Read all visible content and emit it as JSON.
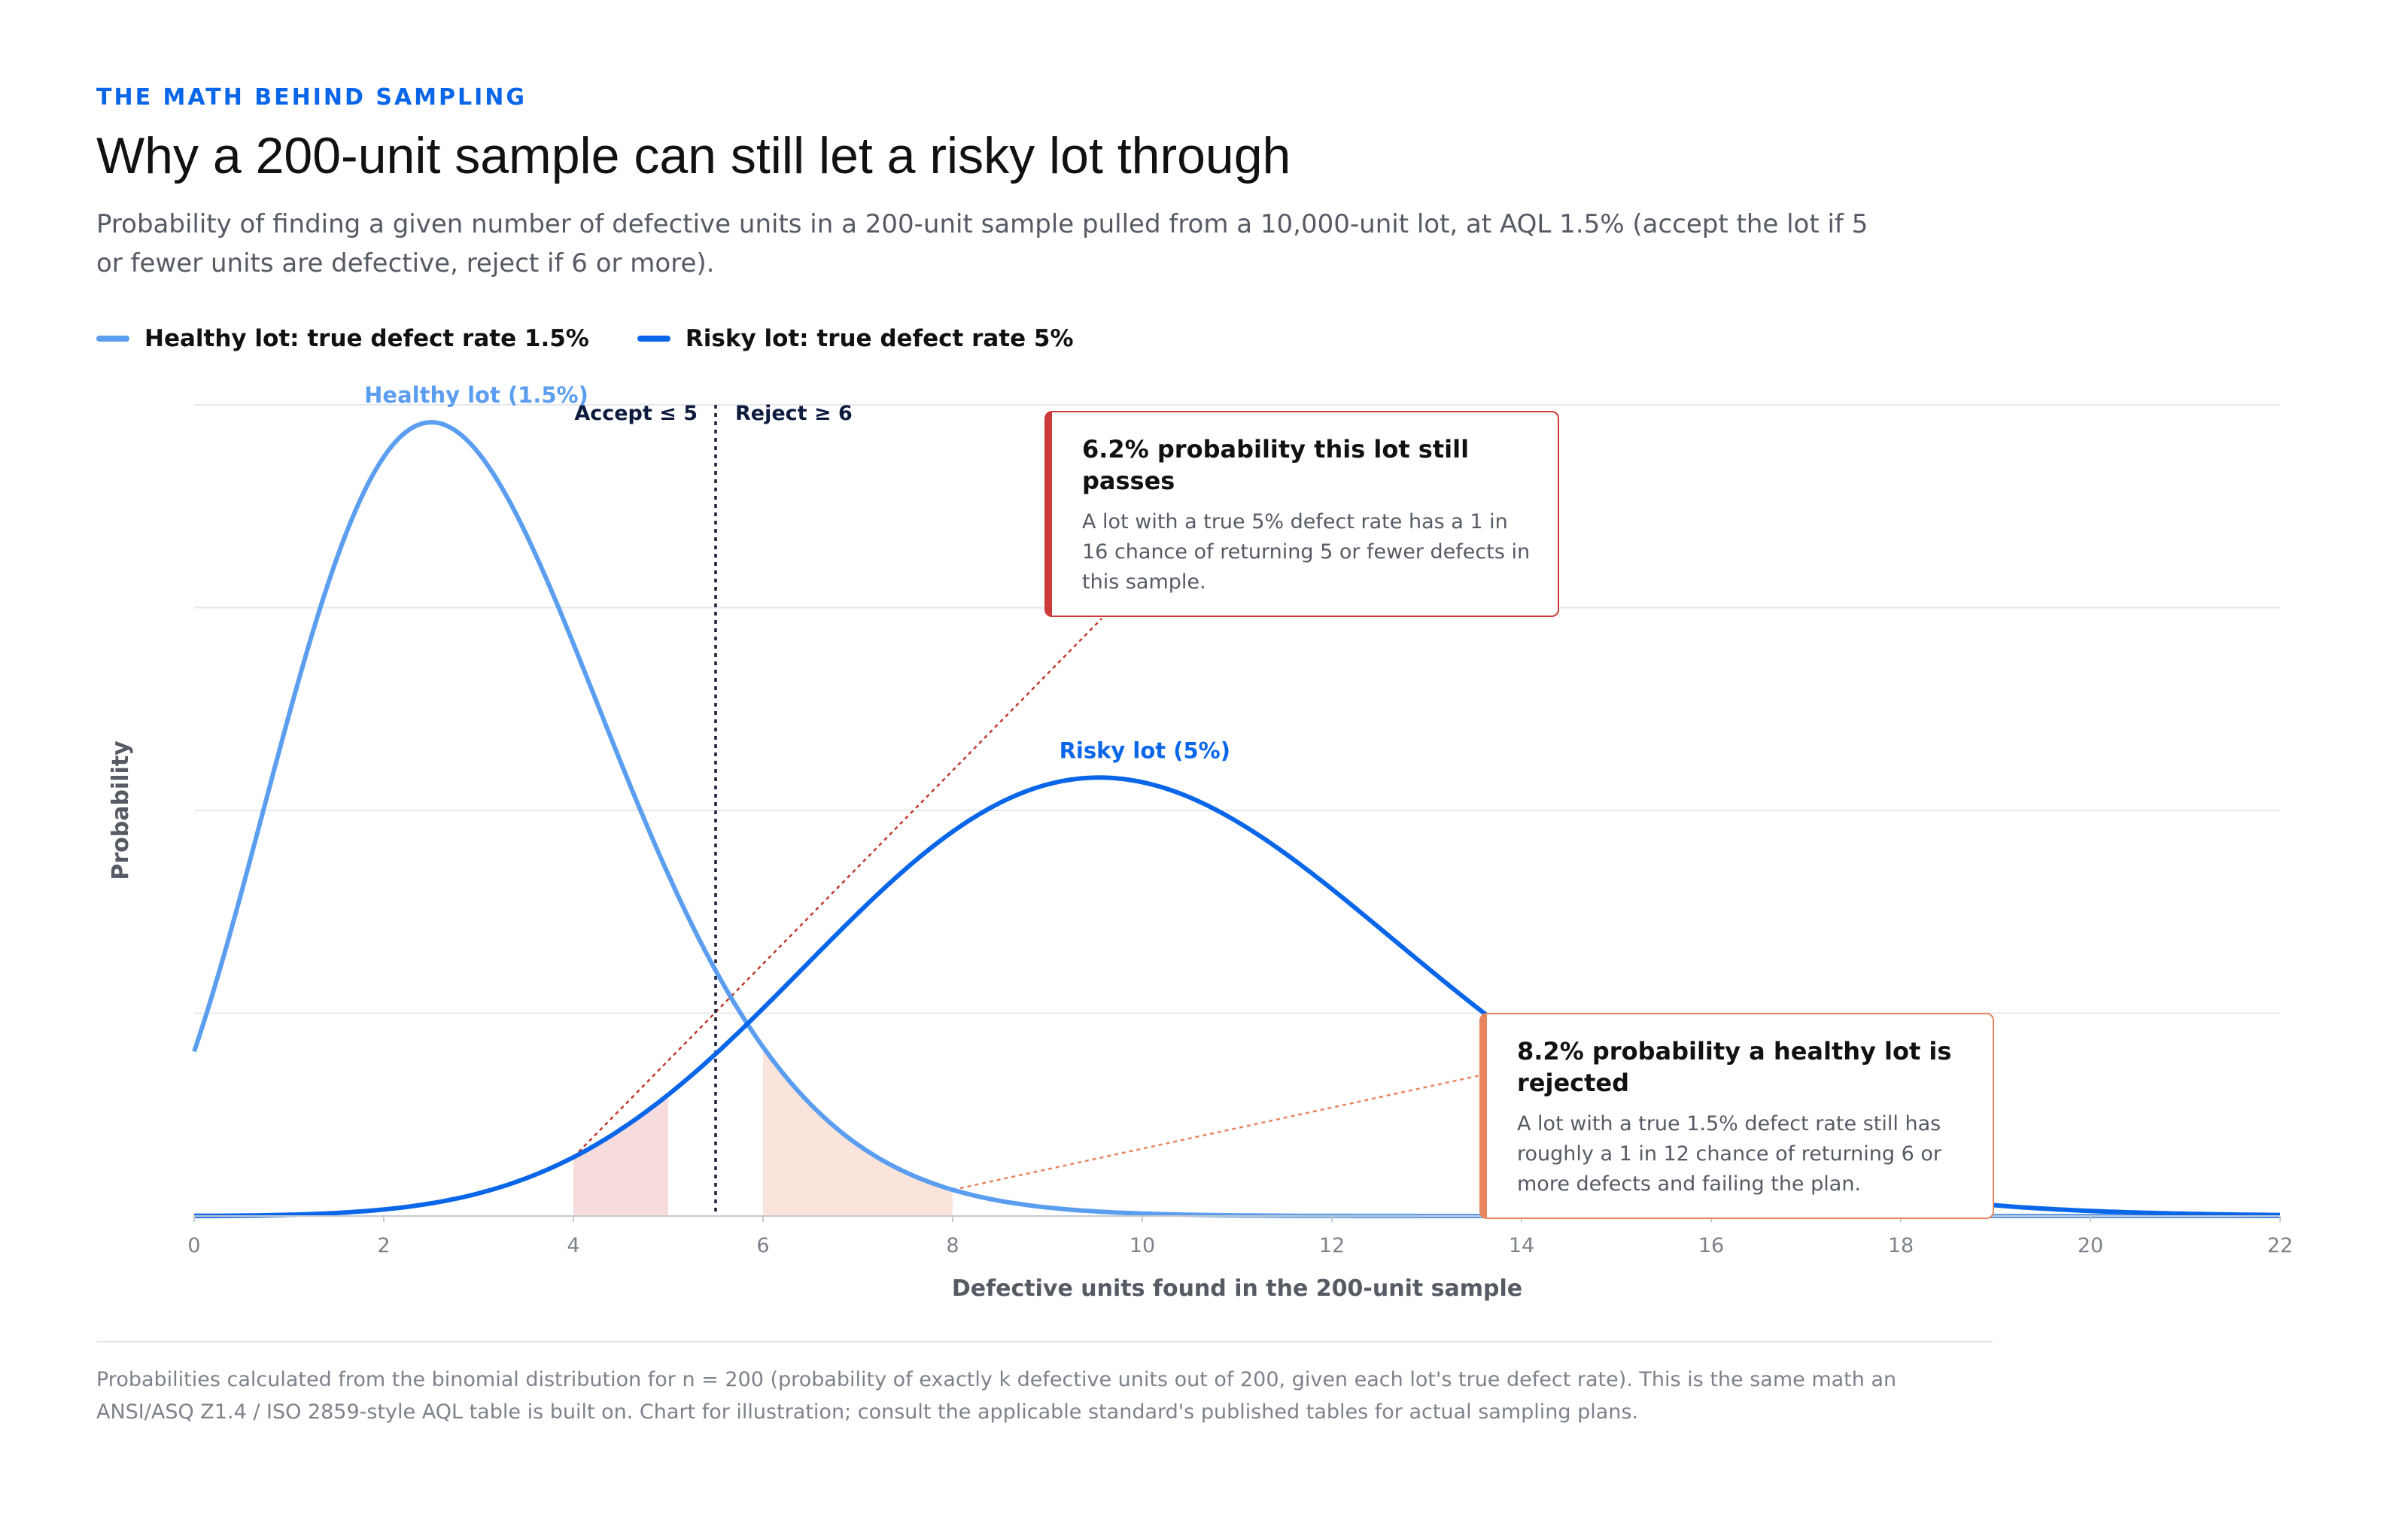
{
  "header": {
    "eyebrow": "THE MATH BEHIND SAMPLING",
    "title": "Why a 200-unit sample can still let a risky lot through",
    "subtitle": "Probability of finding a given number of defective units in a 200-unit sample pulled from a 10,000-unit lot, at AQL 1.5% (accept the lot if 5 or fewer units are defective, reject if 6 or more)."
  },
  "legend": [
    {
      "label": "Healthy lot: true defect rate 1.5%",
      "color": "#5b9ef0"
    },
    {
      "label": "Risky lot: true defect rate 5%",
      "color": "#0a66e8"
    }
  ],
  "callouts": {
    "risky": {
      "title": "6.2% probability this lot still passes",
      "body": "A lot with a true 5% defect rate has a 1 in 16 chance of returning 5 or fewer defects in this sample."
    },
    "healthy": {
      "title": "8.2% probability a healthy lot is rejected",
      "body": "A lot with a true 1.5% defect rate still has roughly a 1 in 12 chance of returning 6 or more defects and failing the plan."
    }
  },
  "footnote": "Probabilities calculated from the binomial distribution for n = 200 (probability of exactly k defective units out of 200, given each lot's true defect rate). This is the same math an ANSI/ASQ Z1.4 / ISO 2859-style AQL table is built on. Chart for illustration; consult the applicable standard's published tables for actual sampling plans.",
  "chart_data": {
    "type": "line",
    "xlabel": "Defective units found in the 200-unit sample",
    "ylabel": "Probability",
    "xlim": [
      0,
      22
    ],
    "ylim": [
      0,
      0.24
    ],
    "x_ticks": [
      0,
      2,
      4,
      6,
      8,
      10,
      12,
      14,
      16,
      18,
      20,
      22
    ],
    "y_gridlines": 4,
    "threshold": {
      "x": 5.5,
      "accept_label": "Accept ≤ 5",
      "reject_label": "Reject ≥ 6"
    },
    "series": [
      {
        "name": "Healthy lot (1.5%)",
        "color": "#5b9ef0",
        "n": 200,
        "p": 0.015,
        "shade_from": 6,
        "shade_to": 8,
        "shade_color": "#fbe4db"
      },
      {
        "name": "Risky lot (5%)",
        "color": "#0a66e8",
        "n": 200,
        "p": 0.05,
        "shade_from": 4,
        "shade_to": 5,
        "shade_color": "#f6dcdc"
      }
    ]
  }
}
